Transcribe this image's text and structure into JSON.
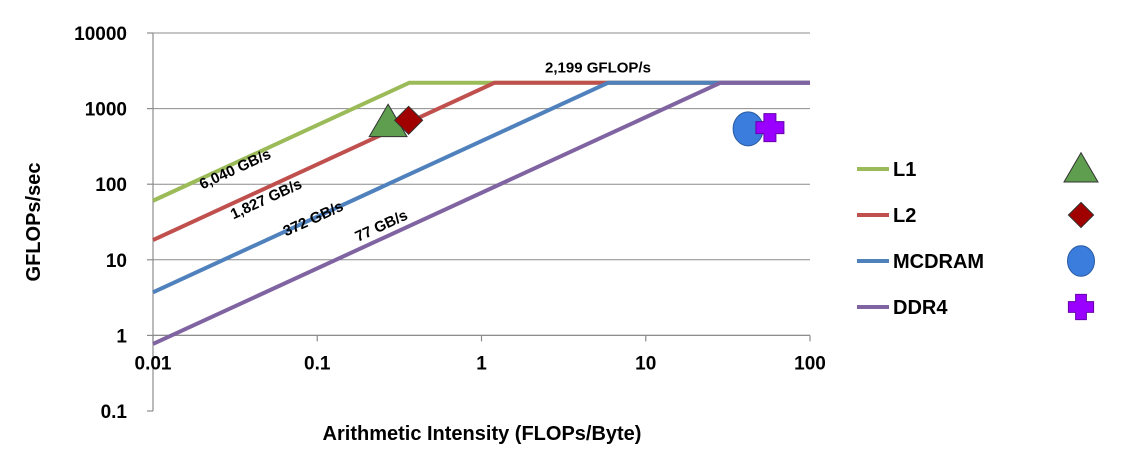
{
  "chart_data": {
    "type": "line",
    "title": "",
    "xlabel": "Arithmetic Intensity (FLOPs/Byte)",
    "ylabel": "GFLOPs/sec",
    "xscale": "log",
    "yscale": "log",
    "xlim": [
      0.01,
      100
    ],
    "ylim": [
      0.1,
      10000
    ],
    "x_ticks": [
      {
        "value": 0.01,
        "label": "0.01"
      },
      {
        "value": 0.1,
        "label": "0.1"
      },
      {
        "value": 1,
        "label": "1"
      },
      {
        "value": 10,
        "label": "10"
      },
      {
        "value": 100,
        "label": "100"
      }
    ],
    "y_ticks": [
      {
        "value": 0.1,
        "label": "0.1"
      },
      {
        "value": 1,
        "label": "1"
      },
      {
        "value": 10,
        "label": "10"
      },
      {
        "value": 100,
        "label": "100"
      },
      {
        "value": 1000,
        "label": "1000"
      },
      {
        "value": 10000,
        "label": "10000"
      }
    ],
    "grid": "horizontal",
    "legend_position": "right",
    "peak_label": "2,199 GFLOP/s",
    "peak_gflops": 2199,
    "series": [
      {
        "name": "L1",
        "bandwidth_label": "6,040 GB/s",
        "bandwidth_gbs": 6040,
        "color": "#9bbb59",
        "marker": "triangle",
        "marker_color": "#5e9e4e",
        "point": {
          "x": 0.27,
          "y": 660
        }
      },
      {
        "name": "L2",
        "bandwidth_label": "1,827 GB/s",
        "bandwidth_gbs": 1827,
        "color": "#c0504d",
        "marker": "diamond",
        "marker_color": "#a00000",
        "point": {
          "x": 0.36,
          "y": 700
        }
      },
      {
        "name": "MCDRAM",
        "bandwidth_label": "372 GB/s",
        "bandwidth_gbs": 372,
        "color": "#4f81bd",
        "marker": "circle",
        "marker_color": "#3b7ddd",
        "point": {
          "x": 42,
          "y": 540
        }
      },
      {
        "name": "DDR4",
        "bandwidth_label": "77 GB/s",
        "bandwidth_gbs": 77,
        "color": "#8064a2",
        "marker": "cross",
        "marker_color": "#9900ff",
        "point": {
          "x": 57,
          "y": 560
        }
      }
    ]
  }
}
